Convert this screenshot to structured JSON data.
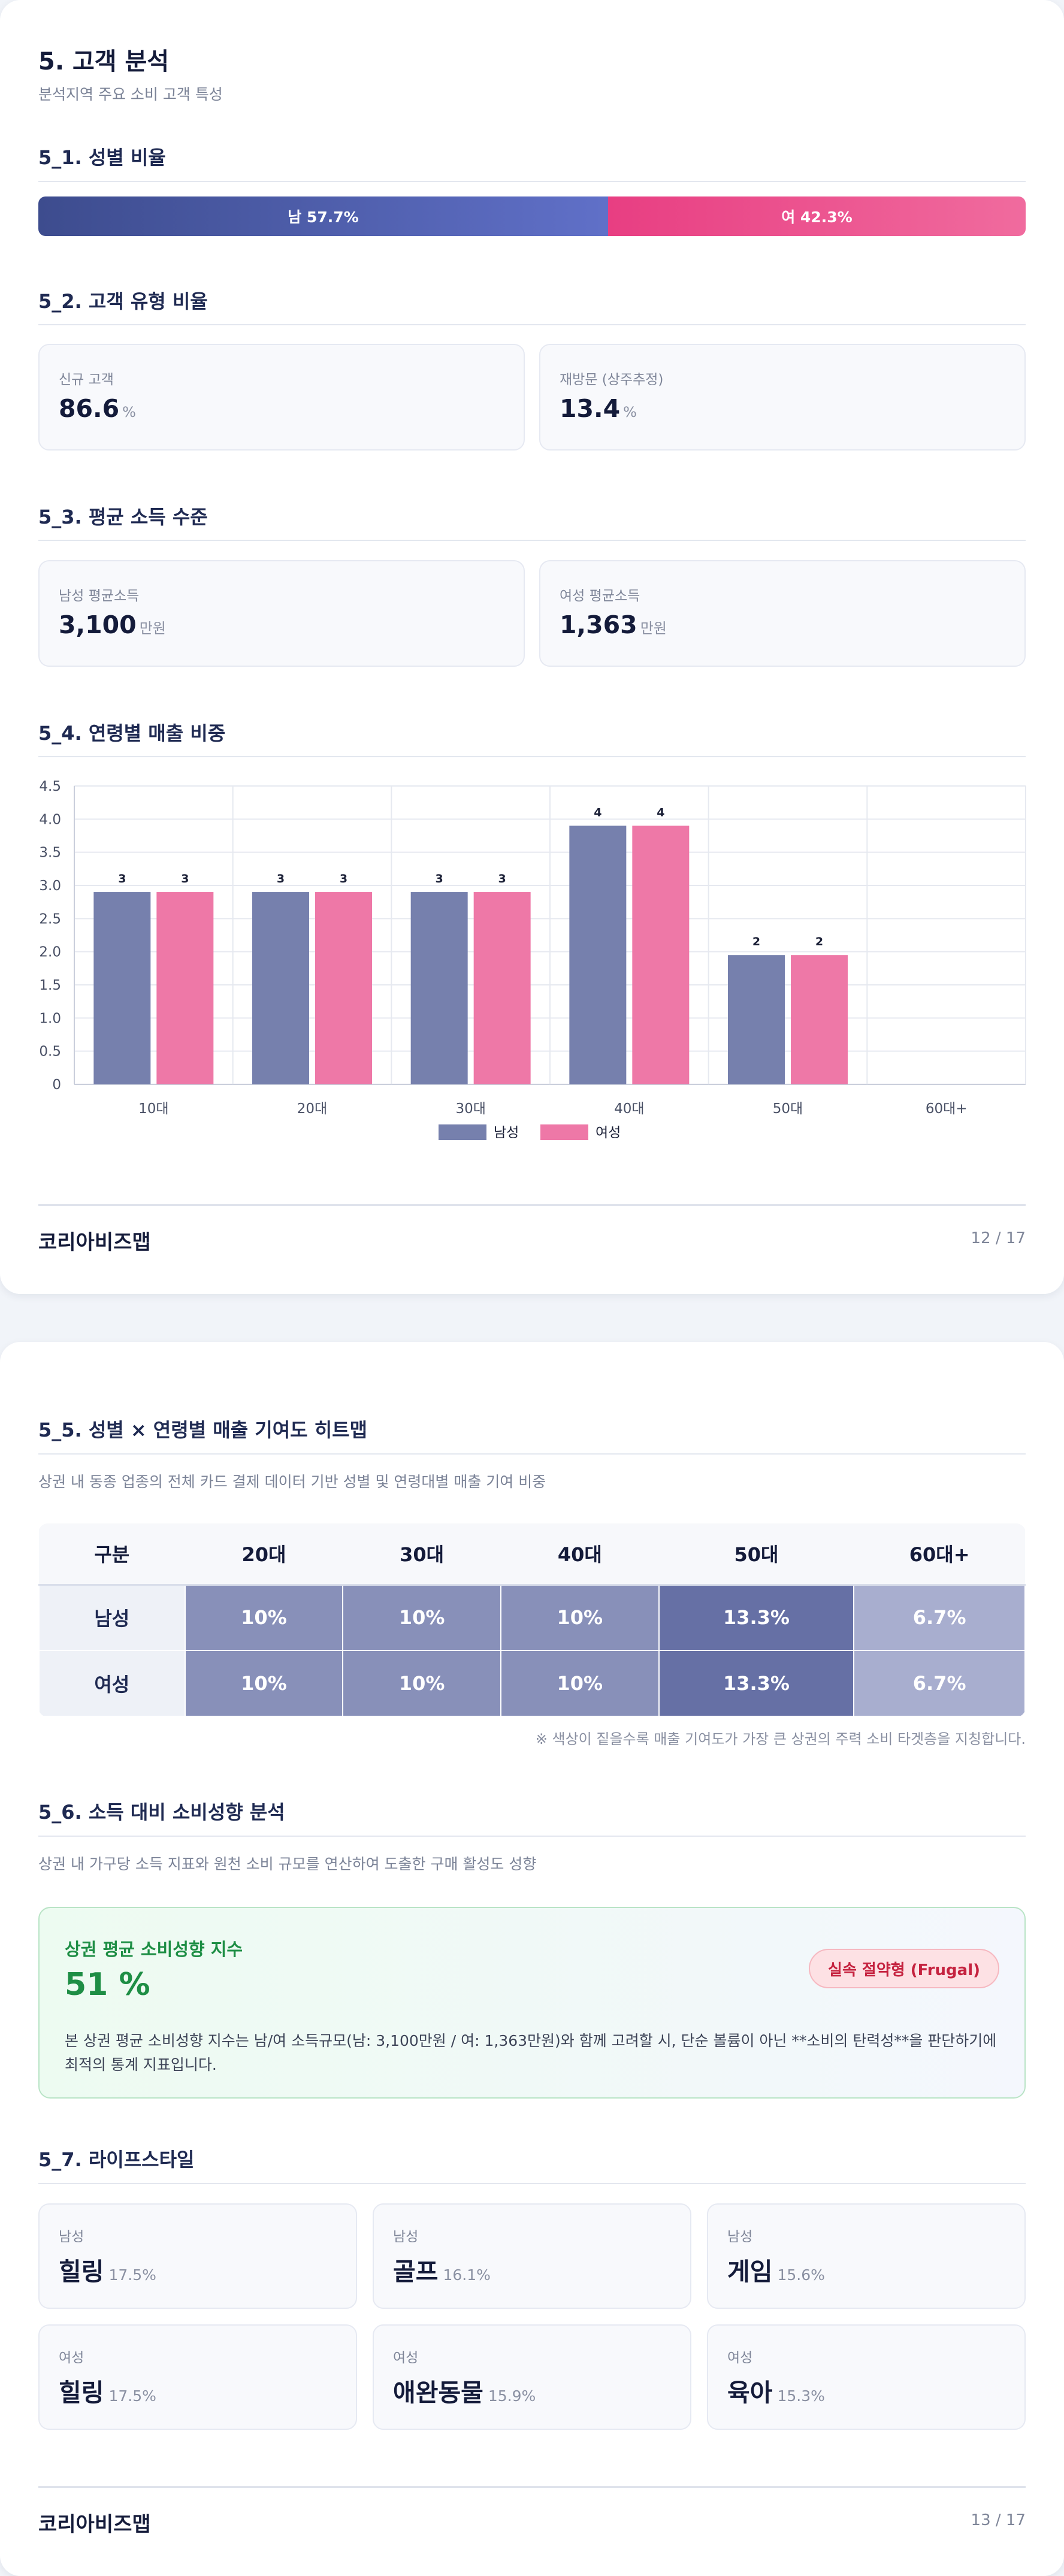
{
  "page1": {
    "title": "5. 고객 분석",
    "subtitle": "분석지역 주요 소비 고객 특성",
    "gender": {
      "title": "5_1. 성별 비율",
      "male_label": "남 57.7%",
      "female_label": "여 42.3%",
      "male_pct": 57.7,
      "female_pct": 42.3
    },
    "customer_type": {
      "title": "5_2. 고객 유형 비율",
      "cards": [
        {
          "label": "신규 고객",
          "value": "86.6",
          "unit": "%"
        },
        {
          "label": "재방문 (상주추정)",
          "value": "13.4",
          "unit": "%"
        }
      ]
    },
    "income": {
      "title": "5_3. 평균 소득 수준",
      "cards": [
        {
          "label": "남성 평균소득",
          "value": "3,100",
          "unit": "만원"
        },
        {
          "label": "여성 평균소득",
          "value": "1,363",
          "unit": "만원"
        }
      ]
    },
    "age_sales": {
      "title": "5_4. 연령별 매출 비중"
    },
    "footer": {
      "brand": "코리아비즈맵",
      "page": "12 / 17"
    }
  },
  "chart_data": {
    "type": "bar",
    "categories": [
      "10대",
      "20대",
      "30대",
      "40대",
      "50대",
      "60대+"
    ],
    "series": [
      {
        "name": "남성",
        "values": [
          3,
          3,
          3,
          4,
          2,
          null
        ],
        "labels": [
          "3",
          "3",
          "3",
          "4",
          "2",
          ""
        ],
        "plot_values": [
          2.9,
          2.9,
          2.9,
          3.9,
          1.95,
          null
        ],
        "color": "#7680ad"
      },
      {
        "name": "여성",
        "values": [
          3,
          3,
          3,
          4,
          2,
          null
        ],
        "labels": [
          "3",
          "3",
          "3",
          "4",
          "2",
          ""
        ],
        "plot_values": [
          2.9,
          2.9,
          2.9,
          3.9,
          1.95,
          null
        ],
        "color": "#ee78a7"
      }
    ],
    "yticks": [
      "0",
      "0.5",
      "1.0",
      "1.5",
      "2.0",
      "2.5",
      "3.0",
      "3.5",
      "4.0",
      "4.5"
    ],
    "ylim": [
      0,
      4.5
    ],
    "grid": true,
    "legend": "bottom"
  },
  "page2": {
    "heatmap": {
      "title": "5_5. 성별 × 연령별 매출 기여도 히트맵",
      "subtitle": "상권 내 동종 업종의 전체 카드 결제 데이터 기반 성별 및 연령대별 매출 기여 비중",
      "header": [
        "구분",
        "20대",
        "30대",
        "40대",
        "50대",
        "60대+"
      ],
      "rows": [
        {
          "label": "남성",
          "cells": [
            "10%",
            "10%",
            "10%",
            "13.3%",
            "6.7%"
          ],
          "colors": [
            "#8890b9",
            "#8890b9",
            "#8890b9",
            "#6670a5",
            "#a8aecf"
          ]
        },
        {
          "label": "여성",
          "cells": [
            "10%",
            "10%",
            "10%",
            "13.3%",
            "6.7%"
          ],
          "colors": [
            "#8890b9",
            "#8890b9",
            "#8890b9",
            "#6670a5",
            "#a8aecf"
          ]
        }
      ],
      "note": "※ 색상이 짙을수록 매출 기여도가 가장 큰 상권의 주력 소비 타겟층을 지칭합니다."
    },
    "spending": {
      "title": "5_6. 소득 대비 소비성향 분석",
      "subtitle": "상권 내 가구당 소득 지표와 원천 소비 규모를 연산하여 도출한 구매 활성도 성향",
      "box_title": "상권 평균 소비성향 지수",
      "value": "51 %",
      "badge": "실속 절약형 (Frugal)",
      "description": "본 상권 평균 소비성향 지수는 남/여 소득규모(남: 3,100만원 / 여: 1,363만원)와 함께 고려할 시, 단순 볼륨이 아닌 **소비의 탄력성**을 판단하기에 최적의 통계 지표입니다."
    },
    "lifestyle": {
      "title": "5_7. 라이프스타일",
      "cards": [
        {
          "gender": "남성",
          "name": "힐링",
          "pct": "17.5%"
        },
        {
          "gender": "남성",
          "name": "골프",
          "pct": "16.1%"
        },
        {
          "gender": "남성",
          "name": "게임",
          "pct": "15.6%"
        },
        {
          "gender": "여성",
          "name": "힐링",
          "pct": "17.5%"
        },
        {
          "gender": "여성",
          "name": "애완동물",
          "pct": "15.9%"
        },
        {
          "gender": "여성",
          "name": "육아",
          "pct": "15.3%"
        }
      ]
    },
    "footer": {
      "brand": "코리아비즈맵",
      "page": "13 / 17"
    }
  }
}
